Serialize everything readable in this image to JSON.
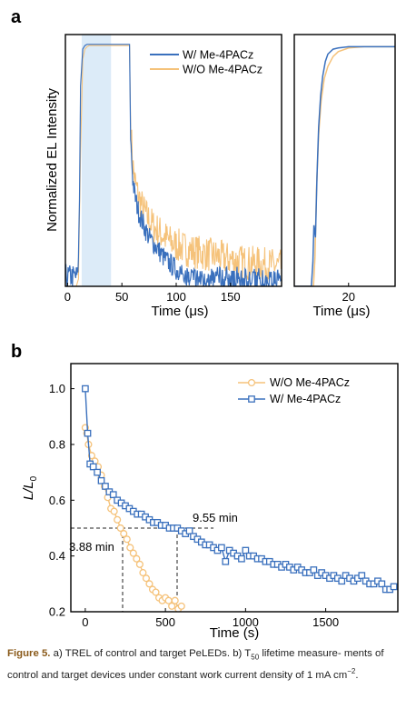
{
  "panel_labels": {
    "a": "a",
    "b": "b"
  },
  "colors": {
    "with": "#3a70bd",
    "without": "#f5c27a",
    "pulse_shade": "#dcebf8",
    "frame": "#000000",
    "dashed": "#222222"
  },
  "chart_data": [
    {
      "id": "panel-a-main",
      "type": "line",
      "title": "",
      "xlabel": "Time (μs)",
      "ylabel": "Normalized EL Intensity",
      "xlim": [
        -2,
        197
      ],
      "ylim": [
        0,
        1.03
      ],
      "xticks": [
        0,
        50,
        100,
        150
      ],
      "yticks_shown": false,
      "pulse_window": [
        13,
        40
      ],
      "legend": {
        "placement": "top-right"
      },
      "series": [
        {
          "name": "W/ Me-4PACz",
          "color": "#3a70bd",
          "x": [
            -2,
            9,
            10,
            11,
            12,
            14,
            16,
            18,
            20,
            25,
            30,
            40,
            50,
            55,
            57,
            58,
            60,
            62,
            65,
            70,
            75,
            80,
            85,
            90,
            95,
            100,
            105,
            110,
            115,
            120,
            125
          ],
          "y": [
            0.04,
            0.04,
            0.12,
            0.35,
            0.82,
            0.97,
            0.985,
            0.99,
            0.99,
            0.99,
            0.99,
            0.99,
            0.99,
            0.99,
            0.99,
            0.6,
            0.44,
            0.37,
            0.31,
            0.25,
            0.2,
            0.17,
            0.14,
            0.11,
            0.09,
            0.07,
            0.06,
            0.05,
            0.04,
            0.03,
            0.02
          ]
        },
        {
          "name": "W/O Me-4PACz",
          "color": "#f5c27a",
          "x": [
            -2,
            8,
            10,
            12,
            14,
            16,
            18,
            20,
            25,
            30,
            40,
            50,
            55,
            57,
            58,
            60,
            62,
            65,
            70,
            75,
            80,
            85,
            90,
            95,
            100,
            110,
            120,
            130,
            140,
            150,
            160,
            170,
            180,
            190,
            197
          ],
          "y": [
            0,
            0,
            0.03,
            0.55,
            0.93,
            0.97,
            0.98,
            0.985,
            0.985,
            0.985,
            0.985,
            0.985,
            0.985,
            0.985,
            0.66,
            0.5,
            0.43,
            0.37,
            0.31,
            0.27,
            0.24,
            0.22,
            0.2,
            0.18,
            0.17,
            0.15,
            0.14,
            0.13,
            0.12,
            0.11,
            0.1,
            0.095,
            0.09,
            0.085,
            0.08
          ]
        }
      ]
    },
    {
      "id": "panel-a-zoom",
      "type": "line",
      "xlabel": "Time (μs)",
      "xlim": [
        9.5,
        29
      ],
      "ylim": [
        0,
        1.03
      ],
      "xticks": [
        20
      ],
      "series": [
        {
          "name": "W/ Me-4PACz",
          "color": "#3a70bd",
          "x": [
            9.5,
            12.8,
            13.1,
            13.3,
            13.6,
            13.9,
            14.2,
            14.6,
            15.0,
            15.5,
            16,
            17,
            18,
            20,
            24,
            29
          ],
          "y": [
            0,
            0,
            0.1,
            0.25,
            0.2,
            0.45,
            0.65,
            0.78,
            0.86,
            0.92,
            0.95,
            0.97,
            0.975,
            0.98,
            0.98,
            0.98
          ]
        },
        {
          "name": "W/O Me-4PACz",
          "color": "#f5c27a",
          "x": [
            9.5,
            13.2,
            13.5,
            13.8,
            14.2,
            14.7,
            15.3,
            16,
            17,
            18,
            20,
            23,
            29
          ],
          "y": [
            0,
            0,
            0.12,
            0.4,
            0.62,
            0.76,
            0.85,
            0.9,
            0.94,
            0.96,
            0.975,
            0.98,
            0.98
          ]
        }
      ]
    },
    {
      "id": "panel-b",
      "type": "line",
      "title": "",
      "xlabel": "Time (s)",
      "ylabel": "L/L₀",
      "xlim": [
        -90,
        1950
      ],
      "ylim": [
        0.2,
        1.09
      ],
      "xticks": [
        0,
        500,
        1000,
        1500
      ],
      "yticks": [
        0.2,
        0.4,
        0.6,
        0.8,
        1.0
      ],
      "legend": {
        "placement": "top-right"
      },
      "annotations": [
        {
          "text": "9.55 min",
          "x": 573,
          "y": 0.5
        },
        {
          "text": "3.88 min",
          "x": 233,
          "y": 0.5
        }
      ],
      "t50_markers": [
        233,
        573
      ],
      "series": [
        {
          "name": "W/O Me-4PACz",
          "color": "#f5c27a",
          "marker": "circle",
          "x": [
            0,
            10,
            20,
            40,
            60,
            80,
            100,
            120,
            140,
            160,
            180,
            200,
            220,
            240,
            260,
            280,
            300,
            320,
            340,
            360,
            380,
            400,
            420,
            440,
            460,
            480,
            500,
            520,
            540,
            560,
            580,
            600
          ],
          "y": [
            0.86,
            0.84,
            0.8,
            0.76,
            0.74,
            0.72,
            0.69,
            0.65,
            0.61,
            0.57,
            0.56,
            0.53,
            0.5,
            0.48,
            0.46,
            0.43,
            0.41,
            0.39,
            0.37,
            0.34,
            0.32,
            0.3,
            0.28,
            0.27,
            0.25,
            0.24,
            0.25,
            0.24,
            0.22,
            0.24,
            0.21,
            0.22
          ]
        },
        {
          "name": "W/ Me-4PACz",
          "color": "#3a70bd",
          "marker": "square",
          "x": [
            0,
            15,
            30,
            50,
            75,
            100,
            125,
            150,
            175,
            200,
            225,
            250,
            275,
            300,
            325,
            350,
            375,
            400,
            425,
            450,
            475,
            500,
            525,
            550,
            575,
            600,
            625,
            650,
            675,
            700,
            725,
            750,
            775,
            800,
            825,
            850,
            875,
            900,
            925,
            950,
            975,
            1000,
            1025,
            1050,
            1075,
            1100,
            1125,
            1150,
            1175,
            1200,
            1225,
            1250,
            1275,
            1300,
            1325,
            1350,
            1375,
            1400,
            1425,
            1450,
            1475,
            1500,
            1525,
            1550,
            1575,
            1600,
            1625,
            1650,
            1675,
            1700,
            1725,
            1750,
            1775,
            1800,
            1825,
            1850,
            1875,
            1900,
            1925
          ],
          "y": [
            1.0,
            0.84,
            0.73,
            0.72,
            0.7,
            0.67,
            0.65,
            0.63,
            0.62,
            0.6,
            0.59,
            0.58,
            0.57,
            0.56,
            0.55,
            0.55,
            0.54,
            0.53,
            0.52,
            0.52,
            0.51,
            0.51,
            0.5,
            0.5,
            0.5,
            0.49,
            0.48,
            0.49,
            0.47,
            0.46,
            0.45,
            0.44,
            0.44,
            0.43,
            0.42,
            0.43,
            0.38,
            0.42,
            0.41,
            0.4,
            0.39,
            0.42,
            0.4,
            0.4,
            0.39,
            0.39,
            0.38,
            0.38,
            0.37,
            0.37,
            0.36,
            0.37,
            0.36,
            0.35,
            0.36,
            0.35,
            0.34,
            0.34,
            0.35,
            0.33,
            0.34,
            0.33,
            0.32,
            0.33,
            0.32,
            0.31,
            0.33,
            0.32,
            0.31,
            0.32,
            0.33,
            0.31,
            0.3,
            0.3,
            0.31,
            0.3,
            0.28,
            0.28,
            0.29
          ]
        }
      ]
    }
  ],
  "caption": {
    "label": "Figure 5.",
    "line1": "a) TREL of control and target PeLEDs. b) T",
    "sub50": "50",
    "line1b": " lifetime measure-",
    "line2": "ments of control and target devices under constant work current density",
    "line3": "of 1 mA cm",
    "sup": "−2",
    "line3b": "."
  }
}
